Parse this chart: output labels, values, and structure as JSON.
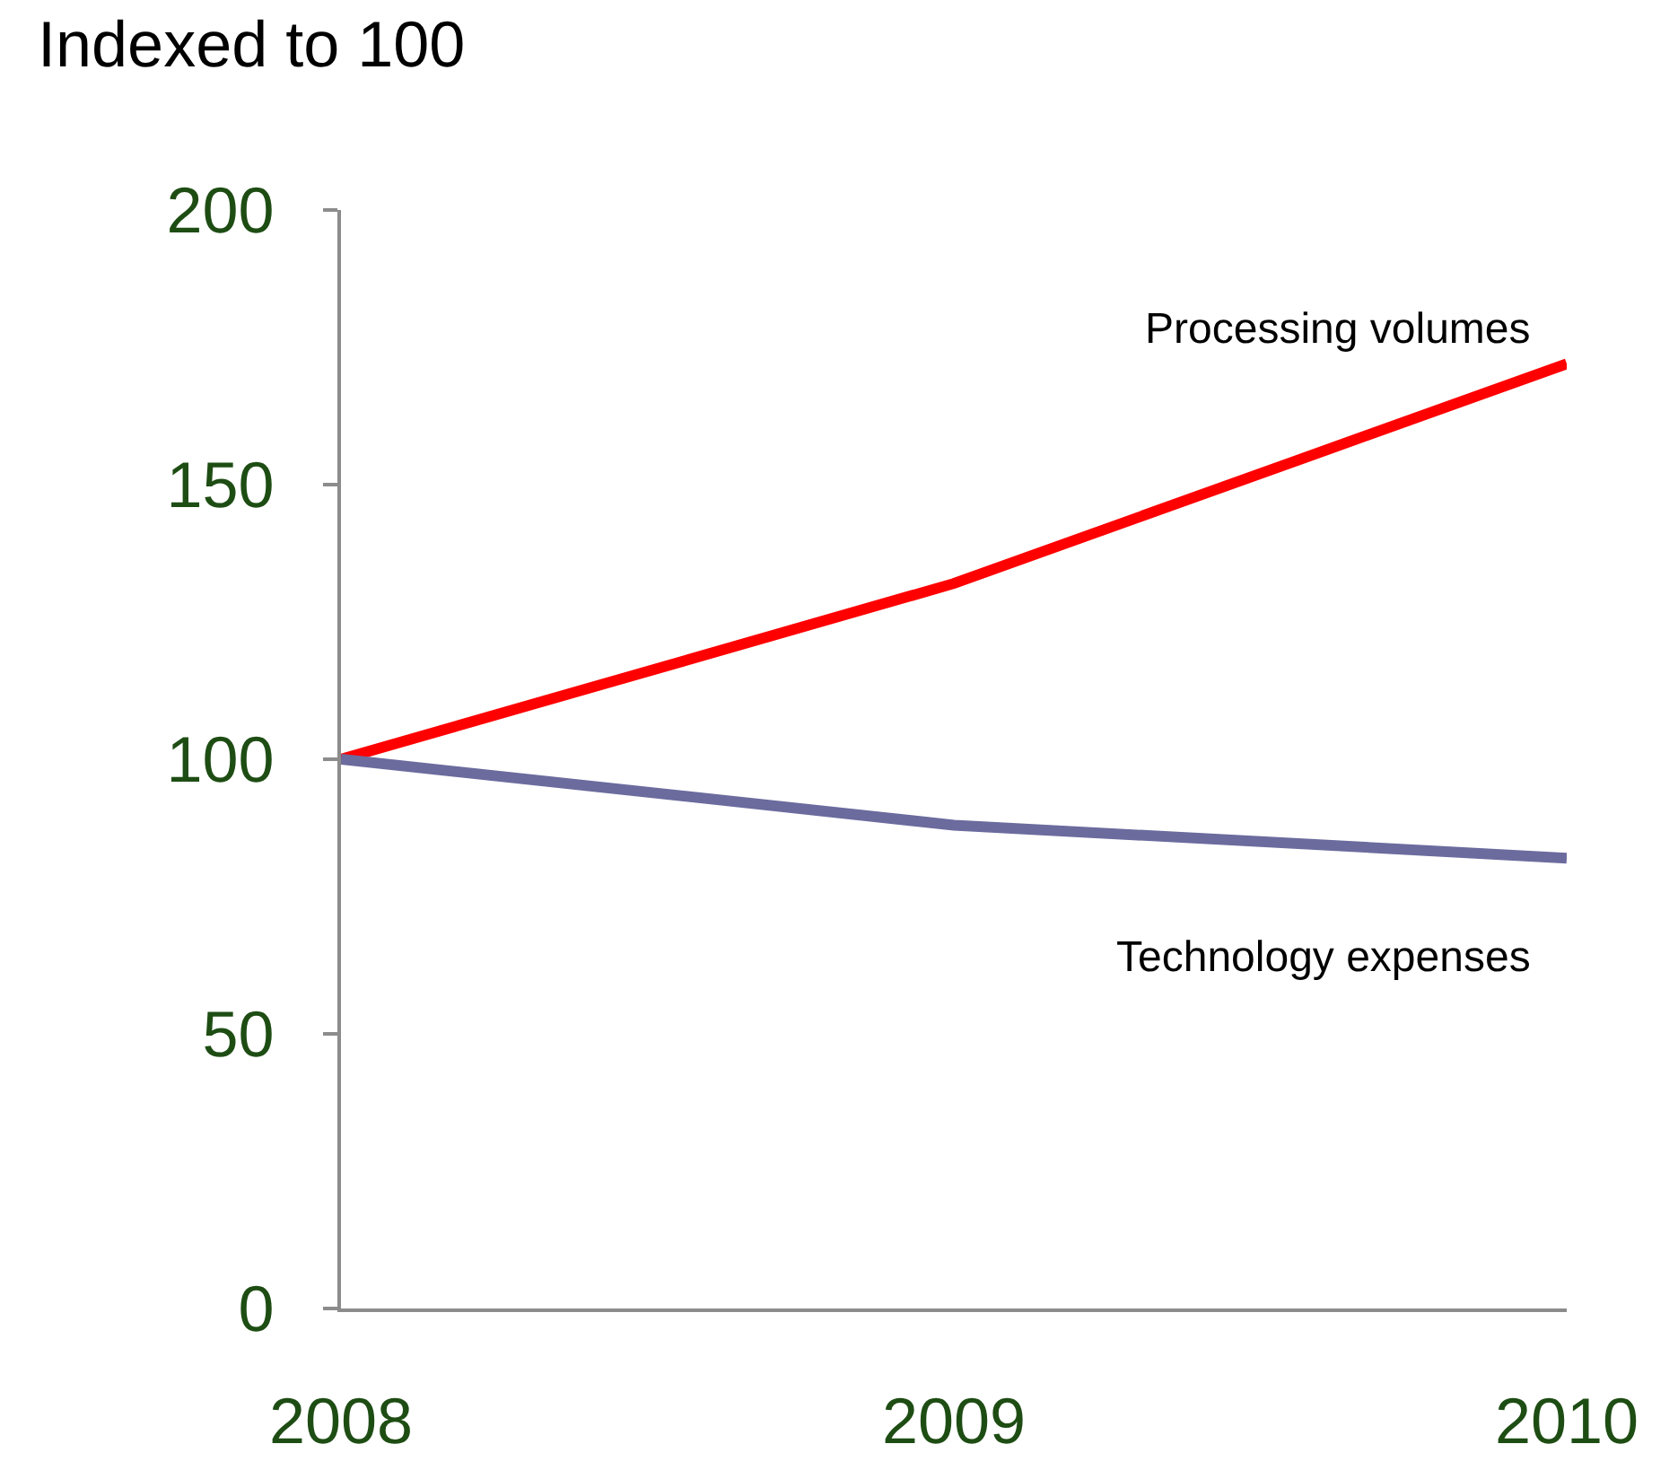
{
  "chart_data": {
    "type": "line",
    "title": "Indexed to 100",
    "categories": [
      "2008",
      "2009",
      "2010"
    ],
    "series": [
      {
        "name": "Processing volumes",
        "color": "#ff0000",
        "values": [
          100,
          132,
          172
        ]
      },
      {
        "name": "Technology expenses",
        "color": "#6b6b9e",
        "values": [
          100,
          88,
          82
        ]
      }
    ],
    "ylim": [
      0,
      200
    ],
    "yticks": [
      0,
      50,
      100,
      150,
      200
    ],
    "legend": false,
    "marker": "none",
    "line_style": "solid"
  }
}
